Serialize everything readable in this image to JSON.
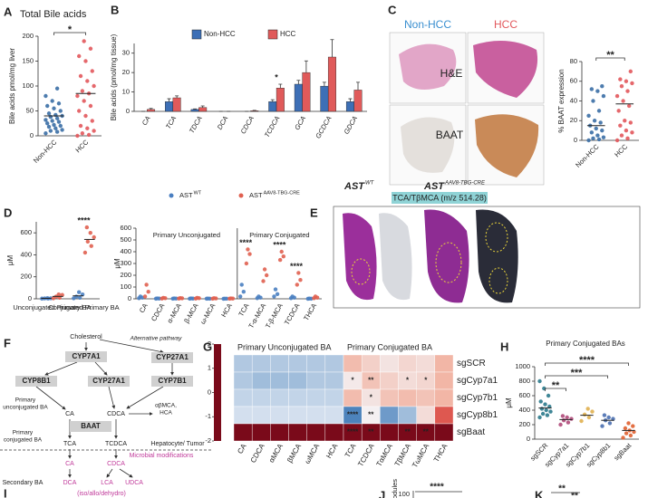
{
  "panel_labels": [
    "A",
    "B",
    "C",
    "D",
    "E",
    "F",
    "G",
    "H",
    "I",
    "J",
    "K"
  ],
  "chart_data": [
    {
      "type": "strip",
      "title": "Total Bile acids",
      "y_label": "Bile acids pmol/mg liver",
      "categories": [
        "Non-HCC",
        "HCC"
      ],
      "colors": [
        "#3a6ea5",
        "#e2585c"
      ],
      "values": [
        [
          5,
          8,
          10,
          12,
          15,
          18,
          20,
          22,
          25,
          28,
          30,
          32,
          35,
          38,
          40,
          42,
          45,
          50,
          55,
          60,
          65,
          70,
          80,
          95
        ],
        [
          0,
          2,
          5,
          10,
          15,
          20,
          30,
          40,
          50,
          60,
          70,
          80,
          85,
          90,
          100,
          110,
          120,
          130,
          150,
          160,
          175,
          190
        ]
      ],
      "means": [
        40,
        85
      ],
      "ylim": [
        0,
        200
      ],
      "yticks": [
        0,
        50,
        100,
        150,
        200
      ],
      "significance": [
        {
          "from": 0,
          "to": 1,
          "label": "*"
        }
      ]
    },
    {
      "type": "bar",
      "y_label": "Bile acids (pmol/mg tissue)",
      "categories": [
        "CA",
        "TCA",
        "TDCA",
        "DCA",
        "CDCA",
        "TCDCA",
        "GCA",
        "GCDCA",
        "GDCA"
      ],
      "series": [
        {
          "name": "Non-HCC",
          "color": "#3d6fb6",
          "values": [
            0,
            5,
            1,
            0,
            0,
            5,
            14,
            13,
            5
          ],
          "errors": [
            0,
            1.5,
            0.3,
            0,
            0,
            1,
            2,
            2,
            1.5
          ]
        },
        {
          "name": "HCC",
          "color": "#e05a5a",
          "values": [
            1,
            7,
            2,
            0,
            0.3,
            12,
            20,
            28,
            11
          ],
          "errors": [
            0.5,
            1,
            0.8,
            0,
            0.2,
            2,
            6,
            9,
            4
          ]
        }
      ],
      "ylim": [
        0,
        35
      ],
      "yticks": [
        0,
        10,
        20,
        30
      ],
      "significance": [
        {
          "from": 5,
          "to": 5,
          "label": "*"
        }
      ]
    },
    {
      "type": "strip",
      "y_label": "% BAAT expression",
      "categories": [
        "Non-HCC",
        "HCC"
      ],
      "colors": [
        "#3a6ea5",
        "#e2585c"
      ],
      "values": [
        [
          0,
          1,
          2,
          3,
          5,
          8,
          10,
          12,
          15,
          18,
          20,
          25,
          30,
          40,
          45,
          50,
          52,
          55
        ],
        [
          0,
          2,
          5,
          8,
          10,
          15,
          18,
          20,
          30,
          35,
          40,
          45,
          50,
          55,
          58,
          60,
          62,
          70
        ]
      ],
      "means": [
        15,
        37
      ],
      "ylim": [
        0,
        80
      ],
      "yticks": [
        0,
        20,
        40,
        60,
        80
      ],
      "significance": [
        {
          "from": 0,
          "to": 1,
          "label": "**"
        }
      ]
    },
    {
      "type": "strip",
      "y_label": "μM",
      "categories": [
        "Unconjugated Primary BA",
        "Conjugated Primary BA"
      ],
      "series": [
        {
          "name": "AST",
          "superscript": "WT",
          "color": "#4a7fc1",
          "values": [
            [
              2,
              3,
              4,
              5,
              6
            ],
            [
              5,
              10,
              20,
              40,
              60
            ]
          ],
          "means": [
            4,
            27
          ]
        },
        {
          "name": "AST",
          "superscript": "AAV8-TBG-CRE",
          "color": "#e06050",
          "values": [
            [
              5,
              10,
              20,
              35,
              40
            ],
            [
              420,
              480,
              520,
              560,
              600,
              650
            ]
          ],
          "means": [
            22,
            540
          ]
        }
      ],
      "ylim": [
        0,
        700
      ],
      "yticks": [
        0,
        200,
        400,
        600
      ],
      "significance": [
        {
          "from": 1,
          "to": 1,
          "label": "****"
        }
      ]
    },
    {
      "type": "strip",
      "y_label": "μM",
      "category_groups": [
        {
          "title": "Primary Unconjugated",
          "categories": [
            "CA",
            "CDCA",
            "α-MCA",
            "β-MCA",
            "ω-MCA",
            "HCA"
          ]
        },
        {
          "title": "Primary Conjugated",
          "categories": [
            "TCA",
            "T-α-MCA",
            "T-β-MCA",
            "TCDCA",
            "THCA"
          ]
        }
      ],
      "series": [
        {
          "color": "#4a7fc1",
          "values": [
            [
              5,
              10,
              20
            ],
            [
              1,
              2,
              3
            ],
            [
              1,
              2,
              3
            ],
            [
              1,
              2,
              3
            ],
            [
              1,
              1,
              2
            ],
            [
              0,
              1,
              1
            ],
            [
              20,
              60,
              120
            ],
            [
              5,
              10,
              20
            ],
            [
              20,
              40,
              80
            ],
            [
              5,
              10,
              20
            ],
            [
              0,
              1,
              2
            ]
          ]
        },
        {
          "color": "#e06050",
          "values": [
            [
              20,
              60,
              120
            ],
            [
              2,
              5,
              8
            ],
            [
              2,
              4,
              6
            ],
            [
              2,
              5,
              8
            ],
            [
              1,
              3,
              5
            ],
            [
              1,
              2,
              3
            ],
            [
              300,
              380,
              420
            ],
            [
              150,
              200,
              250
            ],
            [
              330,
              360,
              400
            ],
            [
              120,
              160,
              220
            ],
            [
              5,
              10,
              20
            ]
          ]
        }
      ],
      "ylim": [
        0,
        600
      ],
      "yticks": [
        0,
        100,
        200,
        300,
        400,
        500,
        600
      ],
      "significance": [
        {
          "from": 6,
          "to": 6,
          "label": "****"
        },
        {
          "from": 8,
          "to": 8,
          "label": "****"
        },
        {
          "from": 9,
          "to": 9,
          "label": "****"
        }
      ]
    },
    {
      "type": "heatmap",
      "column_groups": [
        {
          "title": "Primary Unconjugated BA",
          "categories": [
            "CA",
            "CDCA",
            "αMCA",
            "βMCA",
            "ωMCA",
            "HCA"
          ]
        },
        {
          "title": "Primary Conjugated BA",
          "categories": [
            "TCA",
            "TCDCA",
            "TαMCA",
            "TβMCA",
            "TωMCA",
            "THCA"
          ]
        }
      ],
      "rows": [
        "sgSCR",
        "sgCyp7a1",
        "sgCyp7b1",
        "sgCyp8b1",
        "sgBaat"
      ],
      "values": [
        [
          -0.4,
          -0.4,
          -0.4,
          -0.4,
          -0.4,
          -0.4,
          0.9,
          0.6,
          0.3,
          0.5,
          0.4,
          1.0
        ],
        [
          -0.4,
          -0.5,
          -0.5,
          -0.5,
          -0.4,
          -0.4,
          0.2,
          0.8,
          0.6,
          0.4,
          0.5,
          1.0
        ],
        [
          -0.3,
          -0.3,
          -0.3,
          -0.3,
          -0.3,
          -0.3,
          0.9,
          0.3,
          0.8,
          0.9,
          0.8,
          1.0
        ],
        [
          -0.2,
          -0.2,
          -0.2,
          -0.2,
          -0.2,
          -0.2,
          -1.0,
          0.1,
          -0.8,
          -0.5,
          0.4,
          1.8
        ],
        [
          -2,
          -2,
          -2,
          -2,
          -2,
          -2,
          -2,
          -2,
          -2,
          -2,
          -2,
          -2
        ]
      ],
      "annotations": [
        [
          null,
          null,
          null,
          null,
          null,
          null,
          null,
          null,
          null,
          null,
          null,
          null
        ],
        [
          null,
          null,
          null,
          null,
          null,
          null,
          "*",
          "**",
          null,
          "*",
          "*",
          null
        ],
        [
          null,
          null,
          null,
          null,
          null,
          null,
          null,
          "*",
          null,
          null,
          null,
          null
        ],
        [
          null,
          null,
          null,
          null,
          null,
          null,
          "****",
          "**",
          null,
          null,
          null,
          null
        ],
        [
          null,
          null,
          null,
          null,
          null,
          null,
          "****",
          "**",
          null,
          "**",
          "**",
          null
        ]
      ],
      "colorscale": [
        [
          -2,
          "#7a0a1a"
        ],
        [
          -1.5,
          "#7a0a1a"
        ],
        [
          -1.2,
          "#2b6cb0"
        ],
        [
          0,
          "#f4f6fa"
        ],
        [
          1,
          "#f2b6a6"
        ],
        [
          2,
          "#d9413a"
        ]
      ],
      "colorbar_ticks": [
        2,
        1,
        0,
        -1,
        -2
      ]
    },
    {
      "type": "strip",
      "title": "Primary Conjugated BAs",
      "y_label": "μM",
      "categories": [
        "sgSCR",
        "sgCyp7a1",
        "sgCyp7b1",
        "sgCyp8b1",
        "sgBaat"
      ],
      "colors": [
        "#2b7a8c",
        "#b04a7a",
        "#e0b050",
        "#4a6fb0",
        "#e06030"
      ],
      "values": [
        [
          300,
          330,
          350,
          380,
          400,
          420,
          450,
          480,
          520,
          600,
          700,
          800
        ],
        [
          200,
          230,
          260,
          280,
          300,
          320
        ],
        [
          250,
          300,
          340,
          380,
          420
        ],
        [
          180,
          220,
          260,
          280,
          300,
          330
        ],
        [
          20,
          50,
          80,
          100,
          120,
          150,
          180,
          220
        ]
      ],
      "means": [
        430,
        270,
        330,
        260,
        120
      ],
      "ylim": [
        0,
        1000
      ],
      "yticks": [
        0,
        200,
        400,
        600,
        800,
        1000
      ],
      "significance": [
        {
          "from": 0,
          "to": 4,
          "label": "****"
        },
        {
          "from": 0,
          "to": 3,
          "label": "***"
        },
        {
          "from": 0,
          "to": 1,
          "label": "**"
        }
      ]
    }
  ],
  "figure_c": {
    "columns": [
      "Non-HCC",
      "HCC"
    ],
    "rows": [
      "H&E",
      "BAAT"
    ]
  },
  "figure_e": {
    "left": {
      "name": "AST",
      "superscript": "WT"
    },
    "right": {
      "name": "AST",
      "superscript": "AAV8-TBG-CRE"
    },
    "ion": "TCA/TβMCA (m/z 514.28)"
  },
  "diagram_f": {
    "nodes": [
      {
        "label": "Cholesterol"
      },
      {
        "label": "Alternative pathway"
      },
      {
        "label": "CYP7A1"
      },
      {
        "label": "CYP27A1"
      },
      {
        "label": "CYP8B1"
      },
      {
        "label": "CYP27A1"
      },
      {
        "label": "CYP7B1"
      },
      {
        "lines": [
          "Primary",
          "unconjugated BA"
        ]
      },
      {
        "label": "CA"
      },
      {
        "label": "CDCA"
      },
      {
        "lines": [
          "αβMCA,",
          "HCA"
        ]
      },
      {
        "label": "BAAT"
      },
      {
        "lines": [
          "Primary",
          "conjugated BA"
        ]
      },
      {
        "label": "TCA"
      },
      {
        "label": "TCDCA"
      },
      {
        "label": "Hepatocyte/ Tumor"
      },
      {
        "label": "Microbial modifications"
      },
      {
        "label": "CA"
      },
      {
        "label": "CDCA"
      },
      {
        "label": "Secondary BA"
      },
      {
        "label": "DCA"
      },
      {
        "label": "LCA"
      },
      {
        "label": "UDCA"
      },
      {
        "label": "(iso/allo/dehydro)"
      }
    ]
  },
  "fragments": {
    "j_axis_label": "odules",
    "j_tick": "100",
    "j_sig": "****",
    "k_sig": [
      "**",
      "**"
    ]
  }
}
